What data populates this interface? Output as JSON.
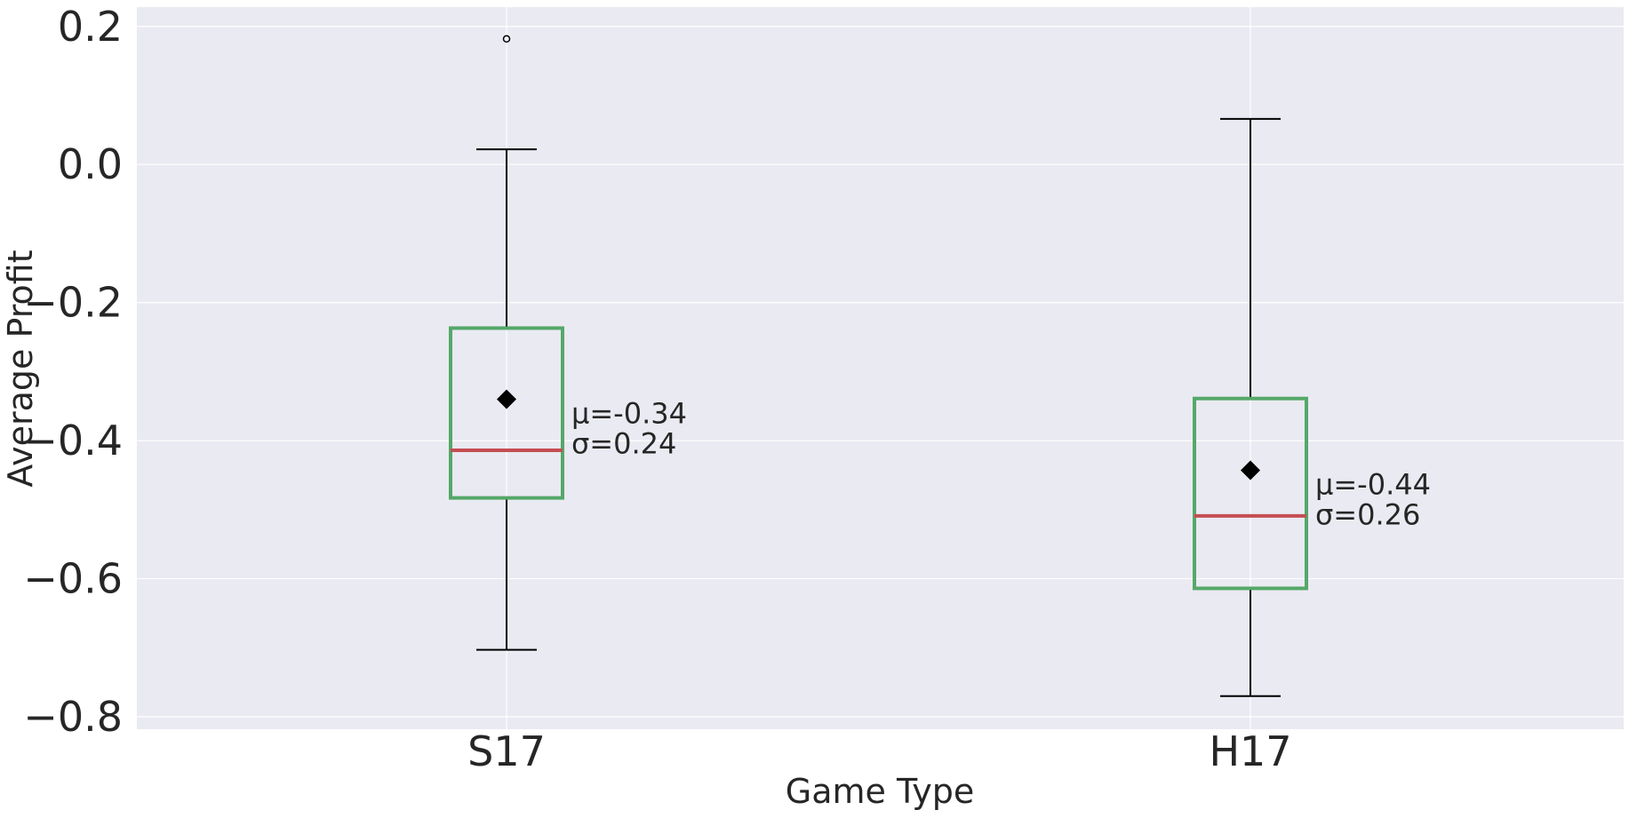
{
  "chart_data": {
    "type": "box",
    "xlabel": "Game Type",
    "ylabel": "Average Profit",
    "ylim": [
      -0.818,
      0.228
    ],
    "yticks": [
      0.2,
      0.0,
      -0.2,
      -0.4,
      -0.6,
      -0.8
    ],
    "ytick_labels": [
      "0.2",
      "0.0",
      "−0.2",
      "−0.4",
      "−0.6",
      "−0.8"
    ],
    "grid": true,
    "categories": [
      "S17",
      "H17"
    ],
    "boxes": [
      {
        "category": "S17",
        "whisker_low": -0.703,
        "q1": -0.483,
        "median": -0.414,
        "q3": -0.237,
        "whisker_high": 0.022,
        "mean": -0.34,
        "outliers": [
          0.182
        ],
        "annotation": [
          "μ=-0.34",
          "σ=0.24"
        ]
      },
      {
        "category": "H17",
        "whisker_low": -0.77,
        "q1": -0.614,
        "median": -0.509,
        "q3": -0.339,
        "whisker_high": 0.066,
        "mean": -0.443,
        "outliers": [],
        "annotation": [
          "μ=-0.44",
          "σ=0.26"
        ]
      }
    ],
    "colors": {
      "background": "#eaeaf2",
      "grid": "#ffffff",
      "box": "#55a868",
      "median": "#c44e52",
      "whisker": "#000000",
      "mean_marker": "#000000",
      "text": "#262626"
    }
  }
}
